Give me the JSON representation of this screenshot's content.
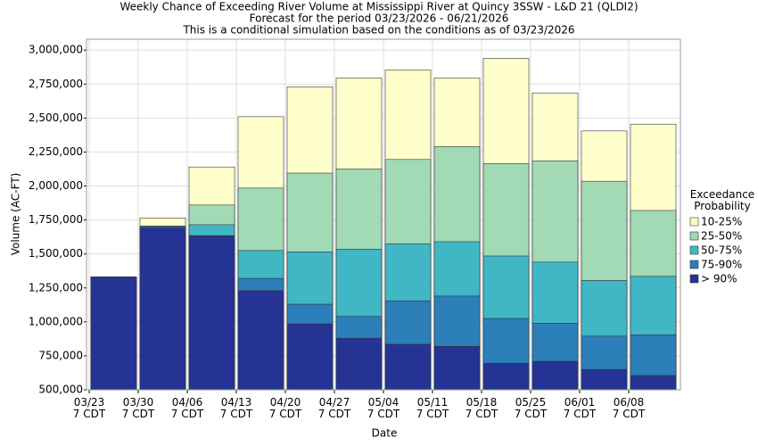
{
  "chart_data": {
    "type": "bar",
    "title": "Weekly Chance of Exceeding River Volume at Mississippi River at Quincy 3SSW - L&D 21 (QLDI2)",
    "subtitle": "Forecast for the period 03/23/2026 - 06/21/2026",
    "note": "This is a conditional simulation based on the conditions as of 03/23/2026",
    "x_label": "Date",
    "y_label": "Volume (AC-FT)",
    "legend_title": "Exceedance\nProbability",
    "categories": [
      "03/23\n7 CDT",
      "03/30\n7 CDT",
      "04/06\n7 CDT",
      "04/13\n7 CDT",
      "04/20\n7 CDT",
      "04/27\n7 CDT",
      "05/04\n7 CDT",
      "05/11\n7 CDT",
      "05/18\n7 CDT",
      "05/25\n7 CDT",
      "06/01\n7 CDT",
      "06/08\n7 CDT"
    ],
    "series": [
      {
        "name": "10-25%",
        "color": "#ffffcc",
        "values": [
          1330000,
          1765000,
          2140000,
          2510000,
          2730000,
          2795000,
          2855000,
          2795000,
          2940000,
          2685000,
          2405000,
          2455000
        ]
      },
      {
        "name": "25-50%",
        "color": "#a1dab4",
        "values": [
          1330000,
          1705000,
          1860000,
          1985000,
          2095000,
          2125000,
          2195000,
          2290000,
          2165000,
          2185000,
          2035000,
          1820000
        ]
      },
      {
        "name": "50-75%",
        "color": "#41b6c4",
        "values": [
          1330000,
          1705000,
          1715000,
          1525000,
          1515000,
          1535000,
          1575000,
          1590000,
          1485000,
          1440000,
          1305000,
          1335000
        ]
      },
      {
        "name": "75-90%",
        "color": "#2c7fb8",
        "values": [
          1330000,
          1700000,
          1635000,
          1320000,
          1130000,
          1040000,
          1155000,
          1190000,
          1025000,
          990000,
          895000,
          905000
        ]
      },
      {
        "name": "> 90%",
        "color": "#253494",
        "values": [
          1330000,
          1690000,
          1630000,
          1230000,
          985000,
          880000,
          835000,
          820000,
          695000,
          710000,
          650000,
          605000
        ]
      }
    ],
    "ylim": [
      500000,
      3080000
    ],
    "yticks": [
      {
        "value": 500000,
        "label": "500,000"
      },
      {
        "value": 750000,
        "label": "750,000"
      },
      {
        "value": 1000000,
        "label": "1,000,000"
      },
      {
        "value": 1250000,
        "label": "1,250,000"
      },
      {
        "value": 1500000,
        "label": "1,500,000"
      },
      {
        "value": 1750000,
        "label": "1,750,000"
      },
      {
        "value": 2000000,
        "label": "2,000,000"
      },
      {
        "value": 2250000,
        "label": "2,250,000"
      },
      {
        "value": 2500000,
        "label": "2,500,000"
      },
      {
        "value": 2750000,
        "label": "2,750,000"
      },
      {
        "value": 3000000,
        "label": "3,000,000"
      }
    ],
    "grid": true
  }
}
